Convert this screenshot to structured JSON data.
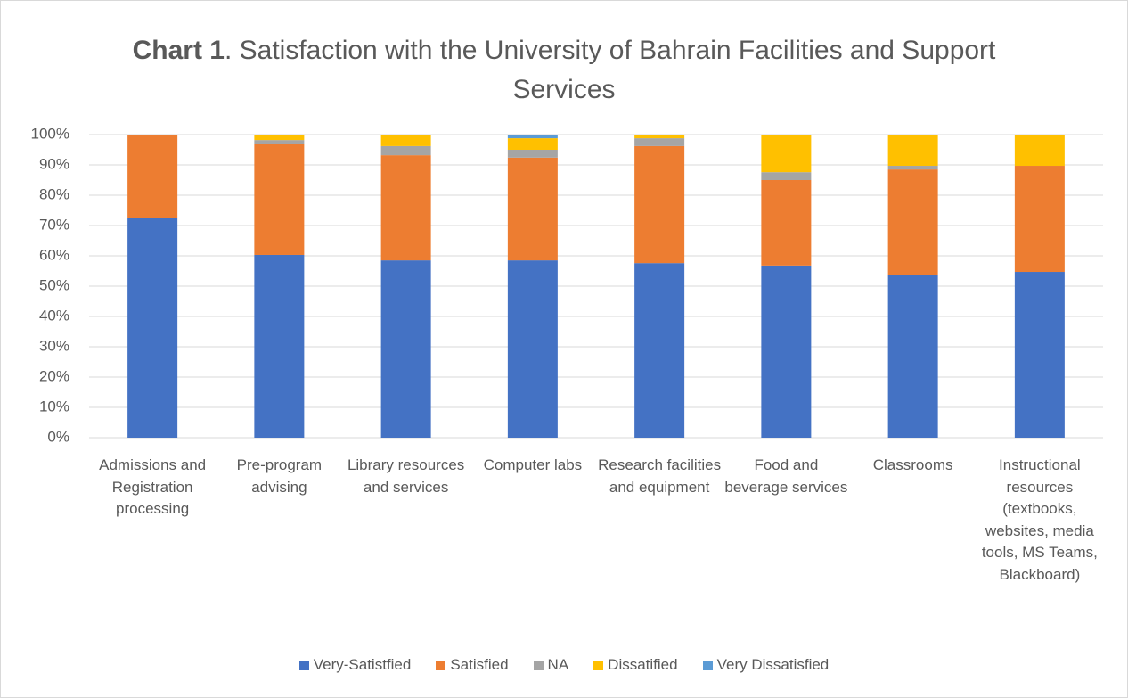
{
  "chart_data": {
    "type": "stacked_bar",
    "title_prefix": "Chart 1",
    "title": ". Satisfaction with the University of Bahrain Facilities and Support Services",
    "categories": [
      "Admissions and Registration processing",
      "Pre-program advising",
      "Library resources and services",
      "Computer labs",
      "Research facilities and equipment",
      "Food and beverage services",
      "Classrooms",
      "Instructional resources (textbooks, websites, media tools, MS Teams, Blackboard)"
    ],
    "series": [
      {
        "name": "Very-Satistfied",
        "color": "#4472c4",
        "values": [
          72.6,
          60.3,
          58.5,
          58.5,
          57.6,
          56.8,
          53.8,
          54.7
        ]
      },
      {
        "name": "Satisfied",
        "color": "#ed7d31",
        "values": [
          27.4,
          36.5,
          34.7,
          33.9,
          38.6,
          28.2,
          34.7,
          35
        ]
      },
      {
        "name": "NA",
        "color": "#a5a5a5",
        "values": [
          0,
          1.4,
          3,
          2.6,
          2.6,
          2.6,
          1.2,
          0
        ]
      },
      {
        "name": "Dissatified",
        "color": "#ffc000",
        "values": [
          0,
          1.8,
          3.8,
          3.8,
          1.2,
          12.4,
          10.3,
          10.3
        ]
      },
      {
        "name": "Very Dissatisfied",
        "color": "#5b9bd5",
        "values": [
          0,
          0,
          0,
          1.2,
          0,
          0,
          0,
          0
        ]
      }
    ],
    "ylim": [
      0,
      100
    ],
    "yticks": [
      {
        "value": 0,
        "label": "0%"
      },
      {
        "value": 10,
        "label": "10%"
      },
      {
        "value": 20,
        "label": "20%"
      },
      {
        "value": 30,
        "label": "30%"
      },
      {
        "value": 40,
        "label": "40%"
      },
      {
        "value": 50,
        "label": "50%"
      },
      {
        "value": 60,
        "label": "60%"
      },
      {
        "value": 70,
        "label": "70%"
      },
      {
        "value": 80,
        "label": "80%"
      },
      {
        "value": 90,
        "label": "90%"
      },
      {
        "value": 100,
        "label": "100%"
      }
    ],
    "grid": true,
    "legend": "bottom"
  }
}
